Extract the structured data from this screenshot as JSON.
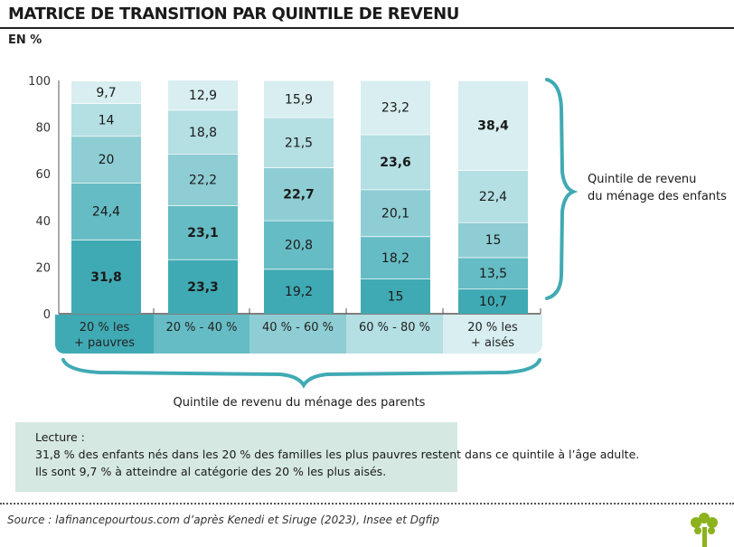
{
  "title": "MATRICE DE TRANSITION PAR QUINTILE DE REVENU",
  "unit": "EN %",
  "chart_data": {
    "type": "stacked-bar",
    "ylim": [
      0,
      100
    ],
    "yticks": [
      "0",
      "20",
      "40",
      "60",
      "80",
      "100"
    ],
    "categories": [
      [
        "20 % les",
        "+ pauvres"
      ],
      [
        "20 % - 40 %"
      ],
      [
        "40 % - 60 %"
      ],
      [
        "60 % - 80 %"
      ],
      [
        "20 % les",
        "+ aisés"
      ]
    ],
    "xlabel": "Quintile de revenu du ménage des parents",
    "ylabel_right": [
      "Quintile de revenu",
      "du ménage des enfants"
    ],
    "colors": [
      "#40aab4",
      "#66bcc4",
      "#8ecdd3",
      "#b4dfe3",
      "#d8eef0"
    ],
    "columns": [
      {
        "values": [
          31.8,
          24.4,
          20,
          14,
          9.7
        ],
        "labels": [
          "31,8",
          "24,4",
          "20",
          "14",
          "9,7"
        ],
        "bold": [
          0
        ]
      },
      {
        "values": [
          23.3,
          23.1,
          22.2,
          18.8,
          12.9
        ],
        "labels": [
          "23,3",
          "23,1",
          "22,2",
          "18,8",
          "12,9"
        ],
        "bold": [
          0,
          1
        ]
      },
      {
        "values": [
          19.2,
          20.8,
          22.7,
          21.5,
          15.9
        ],
        "labels": [
          "19,2",
          "20,8",
          "22,7",
          "21,5",
          "15,9"
        ],
        "bold": [
          2
        ]
      },
      {
        "values": [
          15,
          18.2,
          20.1,
          23.6,
          23.2
        ],
        "labels": [
          "15",
          "18,2",
          "20,1",
          "23,6",
          "23,2"
        ],
        "bold": [
          3
        ]
      },
      {
        "values": [
          10.7,
          13.5,
          15,
          22.4,
          38.4
        ],
        "labels": [
          "10,7",
          "13,5",
          "15",
          "22,4",
          "38,4"
        ],
        "bold": [
          4
        ]
      }
    ]
  },
  "lecture": {
    "heading": "Lecture :",
    "line1": "31,8 % des enfants nés dans les 20 % des familles les plus pauvres restent dans ce quintile à l’âge adulte.",
    "line2": "Ils sont 9,7 % à atteindre al catégorie des 20 % les plus aisés."
  },
  "source": "Source : lafinancepourtous.com d’après Kenedi et Siruge (2023), Insee et Dgfip",
  "logo_icon": "tree-icon",
  "logo_color": "#8cb21e"
}
